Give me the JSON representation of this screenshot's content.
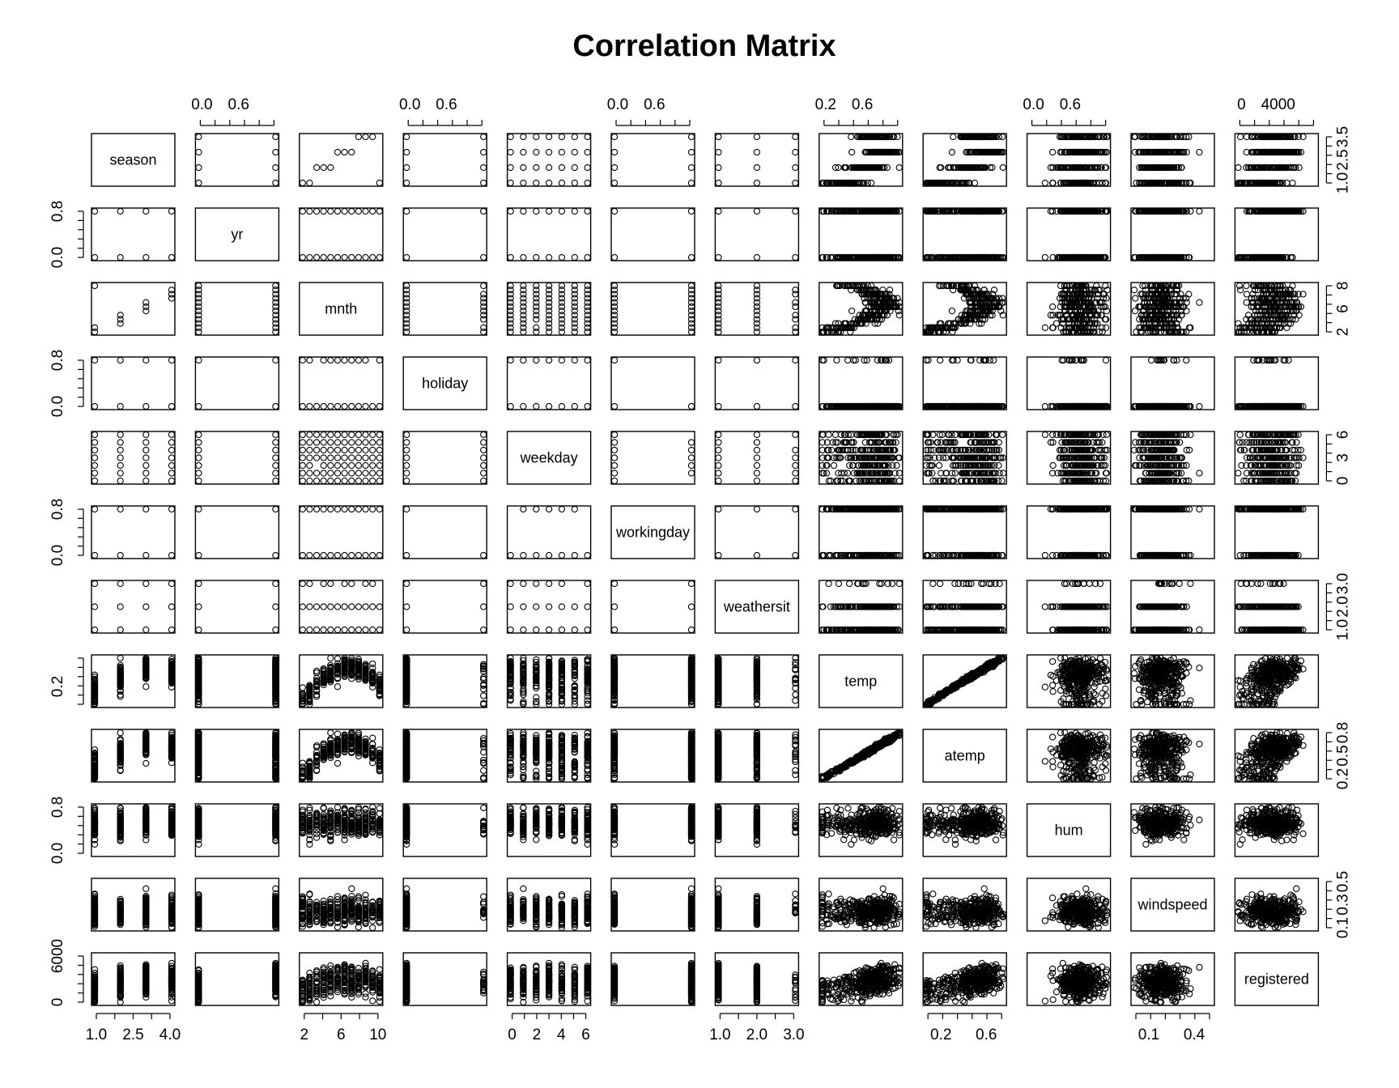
{
  "chart_data": {
    "type": "scatter",
    "title": "Correlation Matrix",
    "variables": [
      "season",
      "yr",
      "mnth",
      "holiday",
      "weekday",
      "workingday",
      "weathersit",
      "temp",
      "atemp",
      "hum",
      "windspeed",
      "registered"
    ],
    "ranges": {
      "season": [
        1,
        4
      ],
      "yr": [
        0,
        1
      ],
      "mnth": [
        1,
        12
      ],
      "holiday": [
        0,
        1
      ],
      "weekday": [
        0,
        6
      ],
      "workingday": [
        0,
        1
      ],
      "weathersit": [
        1,
        3
      ],
      "temp": [
        0.06,
        0.86
      ],
      "atemp": [
        0.08,
        0.84
      ],
      "hum": [
        0.0,
        0.97
      ],
      "windspeed": [
        0.02,
        0.51
      ],
      "registered": [
        20,
        6946
      ]
    },
    "axis_ticks": {
      "top": [
        {
          "var": "yr",
          "labels": [
            "0.0",
            "0.6"
          ]
        },
        {
          "var": "holiday",
          "labels": [
            "0.0",
            "0.6"
          ]
        },
        {
          "var": "workingday",
          "labels": [
            "0.0",
            "0.6"
          ]
        },
        {
          "var": "temp",
          "labels": [
            "0.2",
            "0.6"
          ]
        },
        {
          "var": "hum",
          "labels": [
            "0.0",
            "0.6"
          ]
        },
        {
          "var": "registered",
          "labels": [
            "0",
            "4000"
          ]
        }
      ],
      "bottom": [
        {
          "var": "season",
          "labels": [
            "1.0",
            "2.5",
            "4.0"
          ]
        },
        {
          "var": "mnth",
          "labels": [
            "2",
            "6",
            "10"
          ]
        },
        {
          "var": "weekday",
          "labels": [
            "0",
            "2",
            "4",
            "6"
          ]
        },
        {
          "var": "weathersit",
          "labels": [
            "1.0",
            "2.0",
            "3.0"
          ]
        },
        {
          "var": "atemp",
          "labels": [
            "0.2",
            "0.6"
          ]
        },
        {
          "var": "windspeed",
          "labels": [
            "0.1",
            "0.4"
          ]
        }
      ],
      "left": [
        {
          "var": "yr",
          "labels": [
            "0.0",
            "0.8"
          ]
        },
        {
          "var": "holiday",
          "labels": [
            "0.0",
            "0.8"
          ]
        },
        {
          "var": "workingday",
          "labels": [
            "0.0",
            "0.8"
          ]
        },
        {
          "var": "temp",
          "labels": [
            "0.2"
          ]
        },
        {
          "var": "hum",
          "labels": [
            "0.0",
            "0.8"
          ]
        },
        {
          "var": "registered",
          "labels": [
            "0",
            "6000"
          ]
        }
      ],
      "right": [
        {
          "var": "season",
          "labels": [
            "1.0",
            "2.5",
            "3.5"
          ]
        },
        {
          "var": "mnth",
          "labels": [
            "2",
            "6",
            "8"
          ]
        },
        {
          "var": "weekday",
          "labels": [
            "0",
            "3",
            "6"
          ]
        },
        {
          "var": "weathersit",
          "labels": [
            "1.0",
            "2.0",
            "3.0"
          ]
        },
        {
          "var": "atemp",
          "labels": [
            "0.2",
            "0.5",
            "0.8"
          ]
        },
        {
          "var": "windspeed",
          "labels": [
            "0.1",
            "0.3",
            "0.5"
          ]
        }
      ]
    },
    "grid": false,
    "legend": "none"
  }
}
